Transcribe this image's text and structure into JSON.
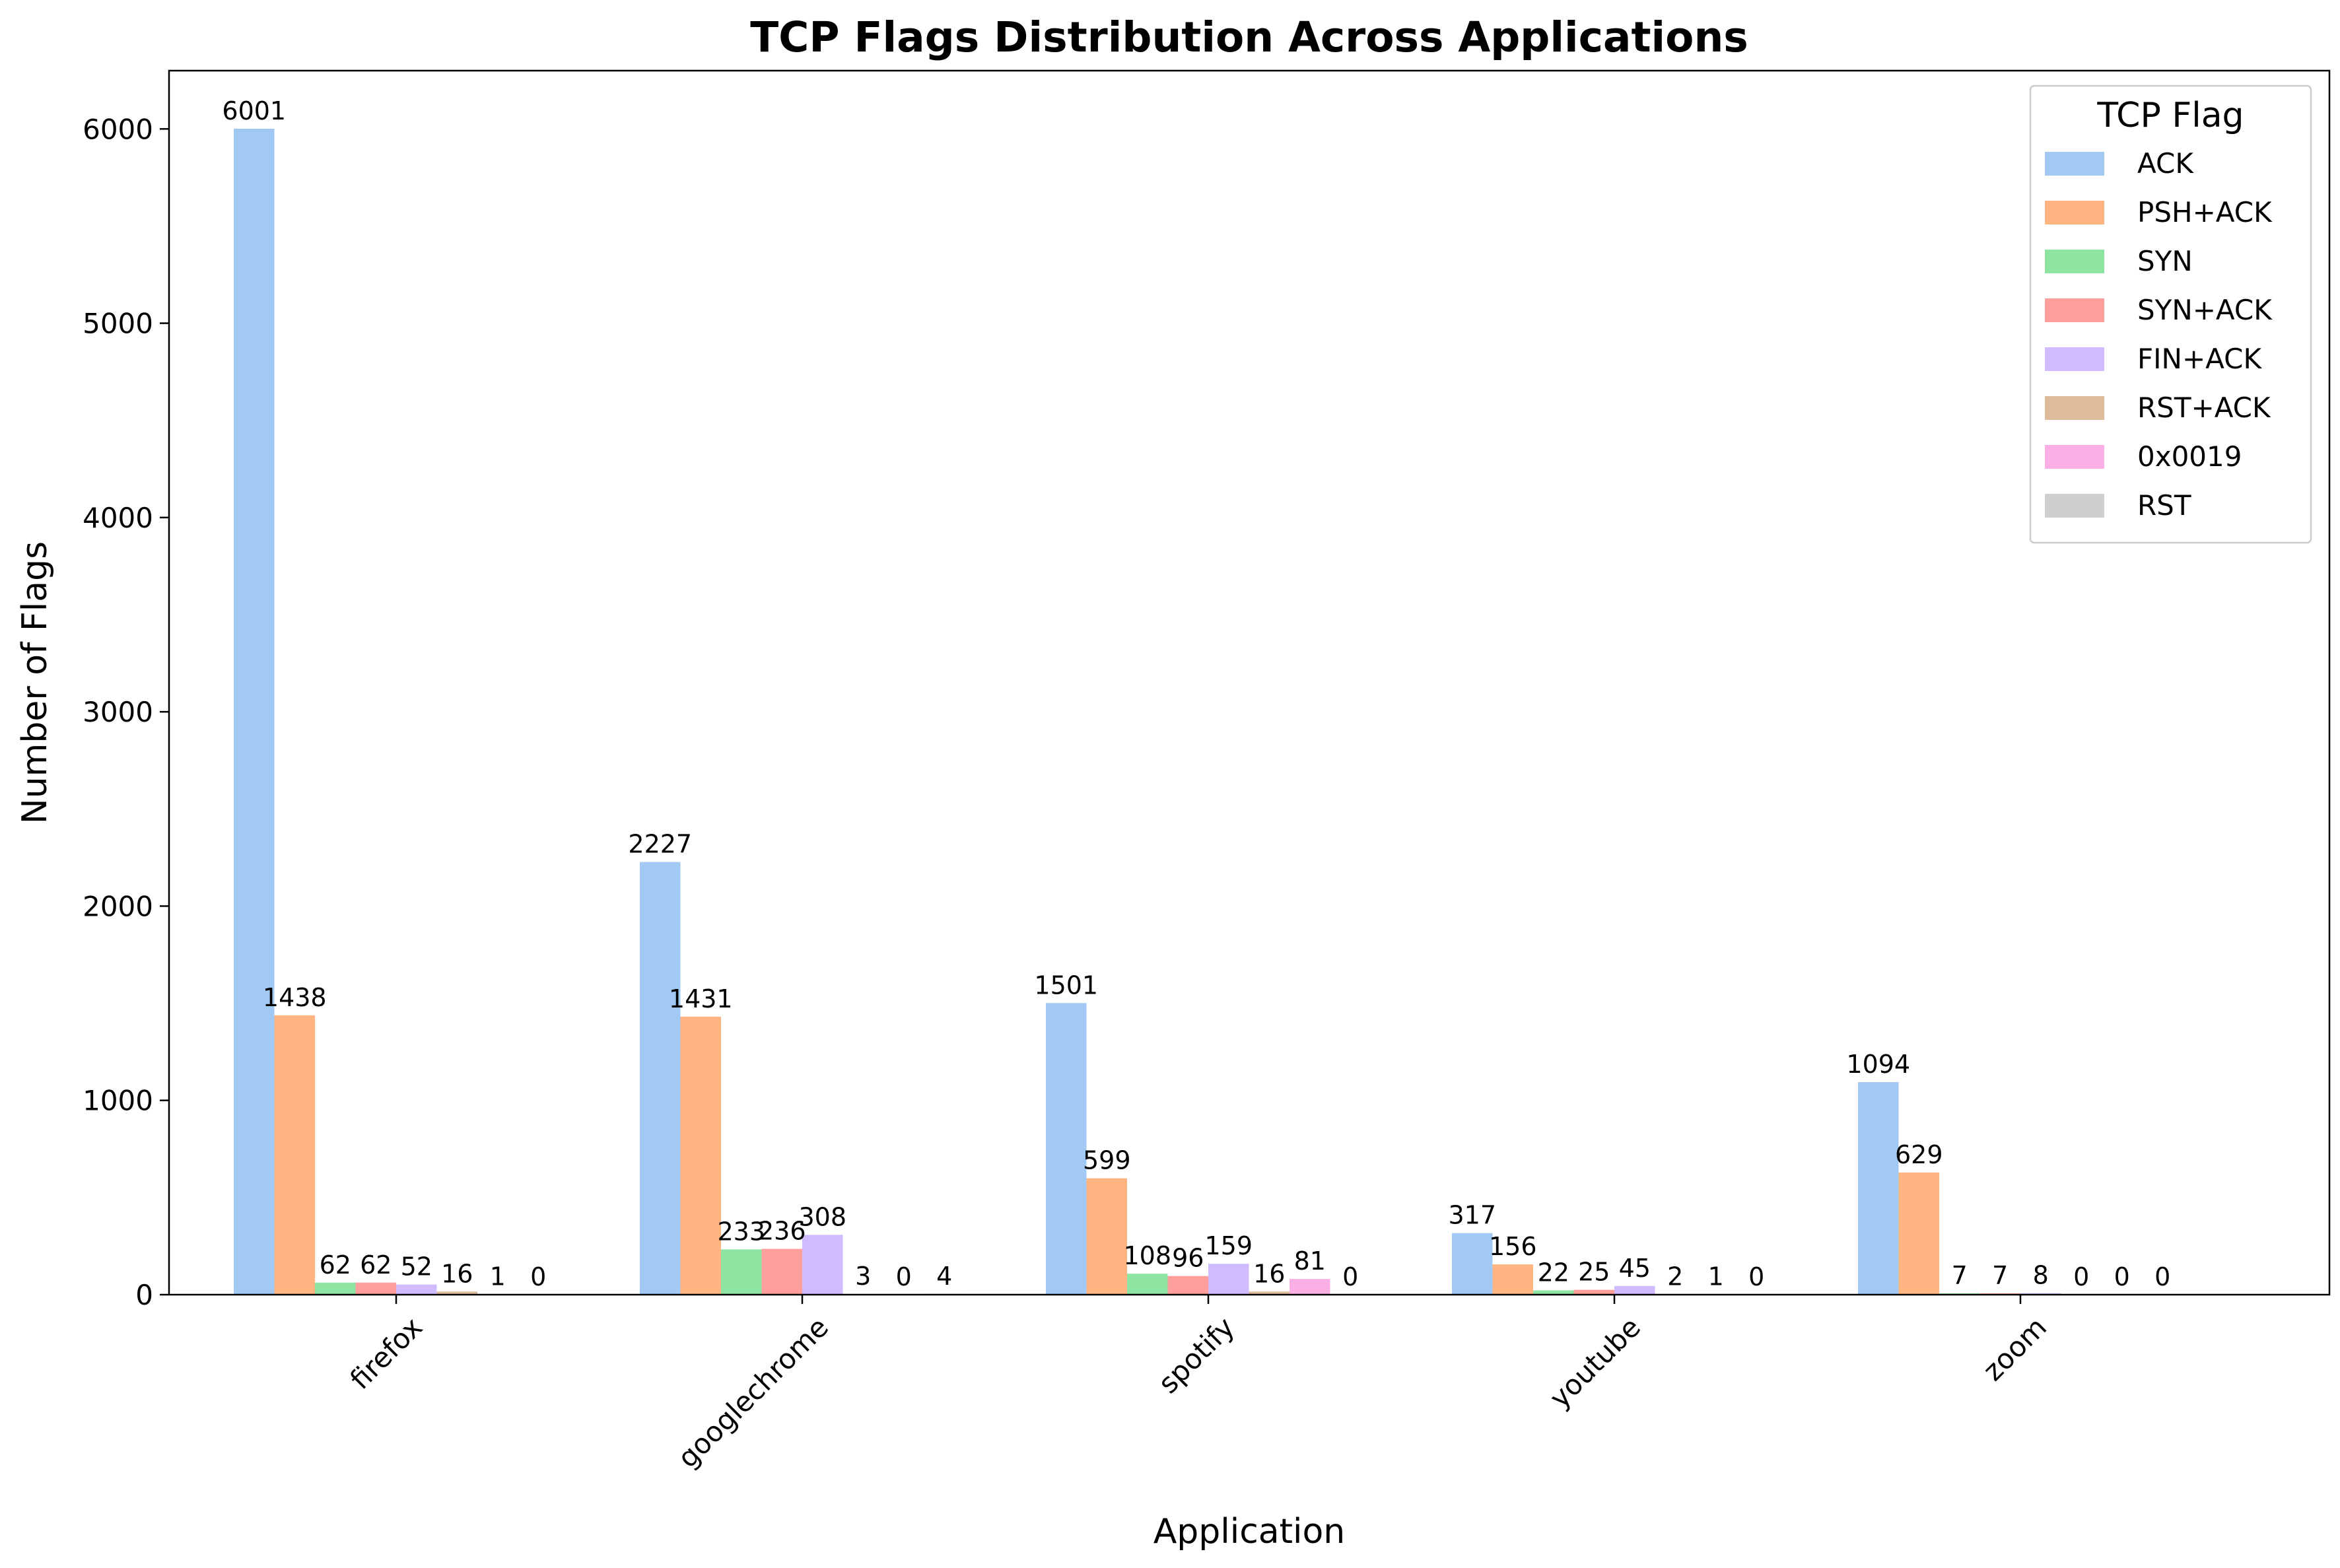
{
  "chart_data": {
    "type": "bar",
    "title": "TCP Flags Distribution Across Applications",
    "xlabel": "Application",
    "ylabel": "Number of Flags",
    "ylim": [
      0,
      6300
    ],
    "yticks": [
      0,
      1000,
      2000,
      3000,
      4000,
      5000,
      6000
    ],
    "categories": [
      "firefox",
      "googlechrome",
      "spotify",
      "youtube",
      "zoom"
    ],
    "legend_title": "TCP Flag",
    "legend_position": "top-right",
    "grid": false,
    "series": [
      {
        "name": "ACK",
        "color": "#a1c9f4",
        "values": [
          6001,
          2227,
          1501,
          317,
          1094
        ]
      },
      {
        "name": "PSH+ACK",
        "color": "#ffb482",
        "values": [
          1438,
          1431,
          599,
          156,
          629
        ]
      },
      {
        "name": "SYN",
        "color": "#8de5a1",
        "values": [
          62,
          233,
          108,
          22,
          7
        ]
      },
      {
        "name": "SYN+ACK",
        "color": "#ff9f9b",
        "values": [
          62,
          236,
          96,
          25,
          7
        ]
      },
      {
        "name": "FIN+ACK",
        "color": "#d0bbff",
        "values": [
          52,
          308,
          159,
          45,
          8
        ]
      },
      {
        "name": "RST+ACK",
        "color": "#debb9b",
        "values": [
          16,
          3,
          16,
          2,
          0
        ]
      },
      {
        "name": "0x0019",
        "color": "#fab0e4",
        "values": [
          1,
          0,
          81,
          1,
          0
        ]
      },
      {
        "name": "RST",
        "color": "#cfcfcf",
        "values": [
          0,
          4,
          0,
          0,
          0
        ]
      }
    ]
  }
}
